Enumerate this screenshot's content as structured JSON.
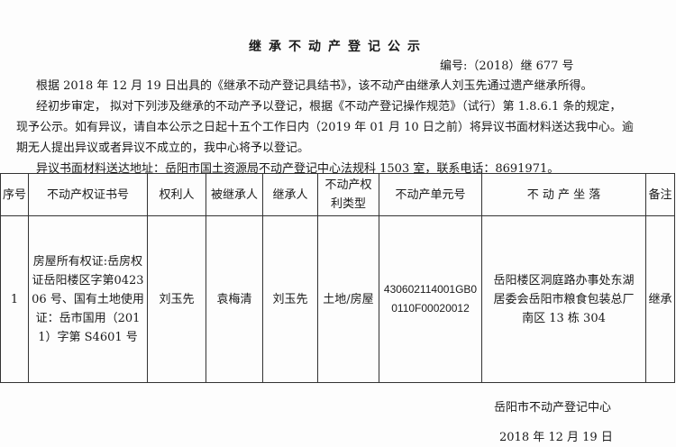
{
  "title": "继承不动产登记公示",
  "number": "编号:（2018）继 677 号",
  "paragraphs": [
    "根据 2018 年 12 月 19 日出具的《继承不动产登记具结书》，该不动产由继承人刘玉先通过遗产继承所得。",
    "经初步审定， 拟对下列涉及继承的不动产予以登记，根据《不动产登记操作规范》（试行）第 1.8.6.1 条的规定，",
    "现予公示。如有异议，请自本公示之日起十五个工作日内（2019 年 01 月 10 日之前）将异议书面材料送达我中心。逾",
    "期无人提出异议或者异议不成立的，我中心将予以登记。",
    "异议书面材料送达地址：岳阳市国土资源局不动产登记中心法规科 1503 室，联系电话：8691971。"
  ],
  "table": {
    "headers": [
      "序号",
      "不动产权证书号",
      "权利人",
      "被继承人",
      "继承人",
      "不动产权利类型",
      "不动产单元号",
      "不 动 产 坐 落",
      "备注"
    ],
    "rows": [
      [
        "1",
        "房屋所有权证:岳房权证岳阳楼区字第042306 号、国有土地使用证：岳市国用（2011）字第 S4601 号",
        "刘玉先",
        "袁梅清",
        "刘玉先",
        "土地/房屋",
        "430602114001GB00110F00020012",
        "岳阳楼区洞庭路办事处东湖居委会岳阳市粮食包装总厂南区 13 栋 304",
        "继承"
      ]
    ]
  },
  "footer": {
    "org": "岳阳市不动产登记中心",
    "date": "2018 年 12 月 19 日"
  }
}
